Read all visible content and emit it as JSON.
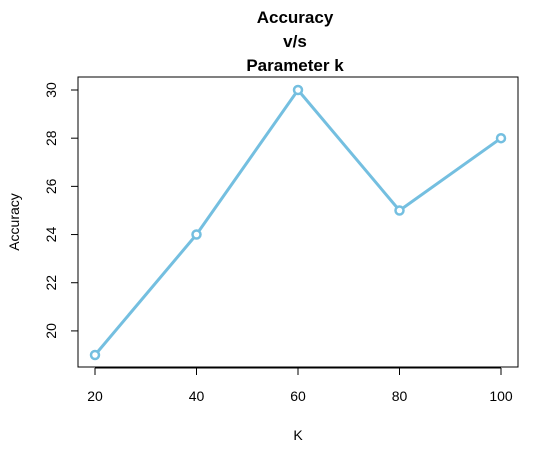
{
  "chart_data": {
    "type": "line",
    "title_lines": [
      "Accuracy",
      "v/s",
      "Parameter k"
    ],
    "xlabel": "K",
    "ylabel": "Accuracy",
    "x": [
      20,
      40,
      60,
      80,
      100
    ],
    "y": [
      19,
      24,
      30,
      25,
      28
    ],
    "xlim": [
      20,
      100
    ],
    "ylim": [
      19,
      30
    ],
    "xticks": [
      20,
      40,
      60,
      80,
      100
    ],
    "yticks": [
      20,
      22,
      24,
      26,
      28,
      30
    ],
    "grid": false,
    "series_color": "#74bfe0",
    "marker": "open-circle"
  }
}
